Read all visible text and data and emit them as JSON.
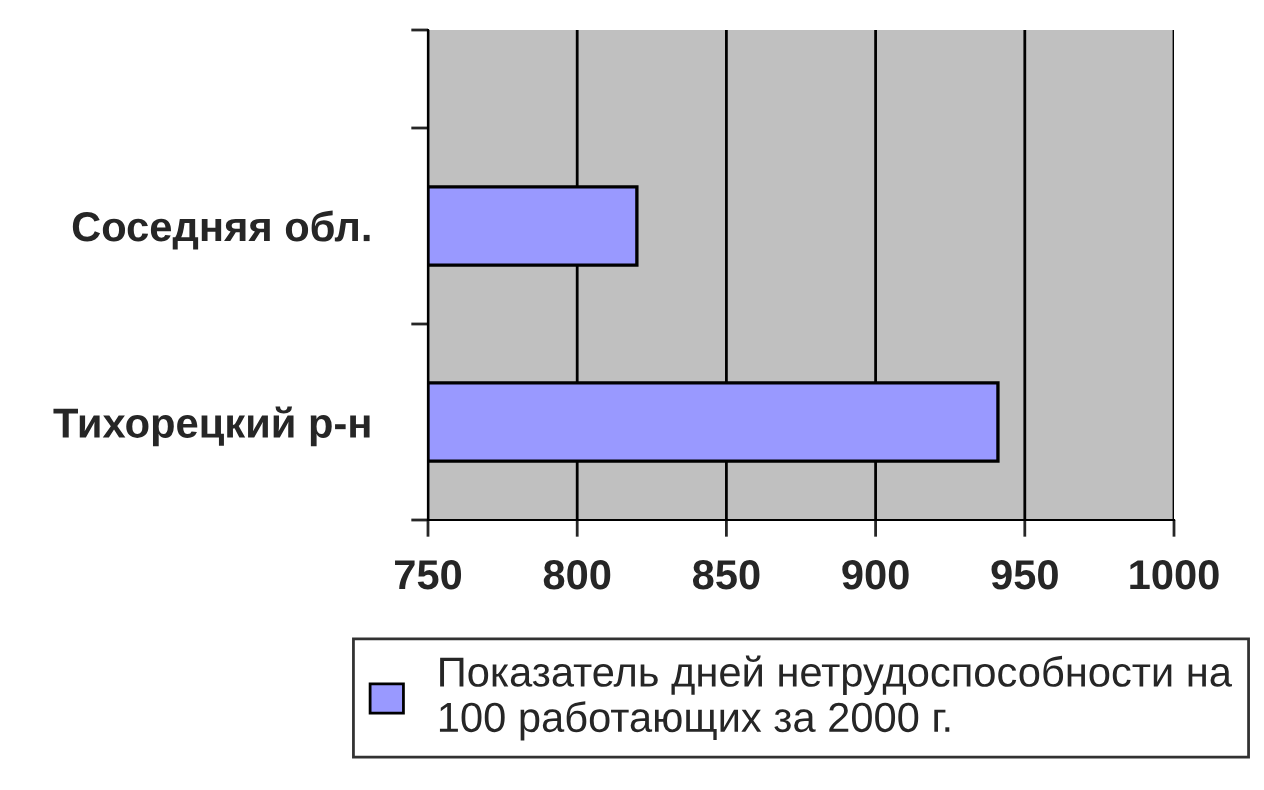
{
  "chart_data": {
    "type": "bar",
    "orientation": "horizontal",
    "categories": [
      "Соседняя обл.",
      "Тихорецкий р-н"
    ],
    "series": [
      {
        "name": "Показатель дней нетрудоспособности на 100 работающих за 2000 г.",
        "color": "#9999ff",
        "values": [
          820,
          941
        ]
      }
    ],
    "xlim": [
      750,
      1000
    ],
    "xticks": [
      750,
      800,
      850,
      900,
      950,
      1000
    ],
    "grid": "x",
    "legend": "bottom"
  }
}
